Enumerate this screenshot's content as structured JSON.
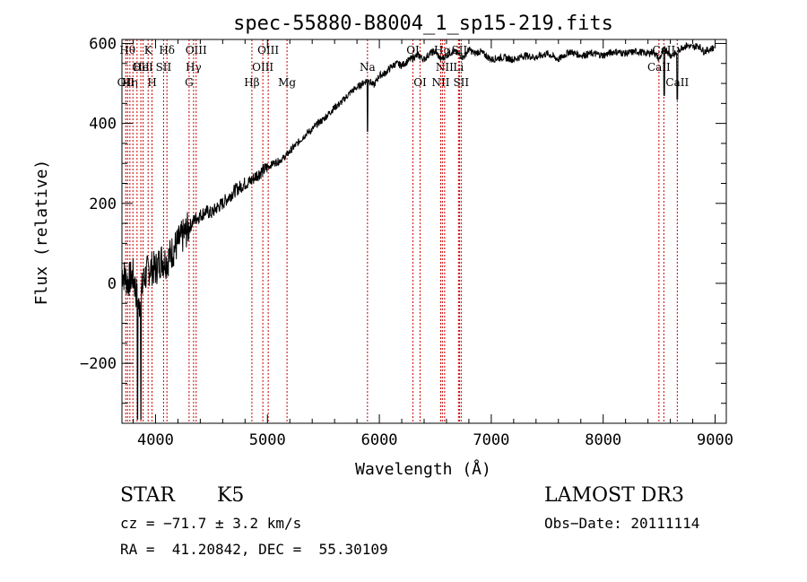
{
  "chart_data": {
    "type": "line",
    "title": "spec-55880-B8004_1_sp15-219.fits",
    "xlabel": "Wavelength (Å)",
    "ylabel": "Flux (relative)",
    "xlim": [
      3700,
      9100
    ],
    "ylim": [
      -350,
      610
    ],
    "xticks": [
      4000,
      5000,
      6000,
      7000,
      8000,
      9000
    ],
    "yticks": [
      -200,
      0,
      200,
      400,
      600
    ],
    "xtick_labels": [
      "4000",
      "5000",
      "6000",
      "7000",
      "8000",
      "9000"
    ],
    "ytick_labels": [
      "−200",
      "0",
      "200",
      "400",
      "600"
    ],
    "series": [
      {
        "name": "spectrum",
        "x": [
          3700,
          3750,
          3800,
          3850,
          3900,
          3950,
          4000,
          4050,
          4100,
          4150,
          4200,
          4250,
          4300,
          4350,
          4400,
          4450,
          4500,
          4550,
          4600,
          4650,
          4700,
          4750,
          4800,
          4850,
          4900,
          4950,
          5000,
          5050,
          5100,
          5150,
          5200,
          5250,
          5300,
          5350,
          5400,
          5450,
          5500,
          5550,
          5600,
          5650,
          5700,
          5750,
          5800,
          5850,
          5900,
          5950,
          6000,
          6050,
          6100,
          6150,
          6200,
          6250,
          6300,
          6350,
          6400,
          6450,
          6500,
          6550,
          6600,
          6650,
          6700,
          6750,
          6800,
          6850,
          6900,
          6950,
          7000,
          7100,
          7200,
          7300,
          7400,
          7500,
          7600,
          7700,
          7800,
          7900,
          8000,
          8100,
          8200,
          8300,
          8400,
          8450,
          8500,
          8550,
          8600,
          8650,
          8700,
          8750,
          8800,
          8850,
          8900,
          8950,
          8990
        ],
        "y": [
          30,
          5,
          20,
          -60,
          15,
          40,
          35,
          60,
          55,
          80,
          100,
          120,
          140,
          160,
          170,
          180,
          175,
          190,
          200,
          215,
          230,
          240,
          250,
          255,
          270,
          280,
          290,
          300,
          305,
          315,
          330,
          345,
          360,
          375,
          385,
          400,
          410,
          425,
          440,
          450,
          465,
          480,
          490,
          500,
          510,
          495,
          520,
          525,
          540,
          550,
          545,
          555,
          565,
          570,
          560,
          575,
          580,
          560,
          570,
          580,
          575,
          565,
          585,
          575,
          580,
          570,
          560,
          565,
          560,
          570,
          565,
          575,
          560,
          580,
          570,
          575,
          570,
          580,
          575,
          580,
          575,
          580,
          560,
          590,
          570,
          575,
          590,
          595,
          590,
          595,
          580,
          585,
          590
        ]
      }
    ],
    "lines": [
      {
        "x": 3734,
        "label": "OII",
        "row": 2
      },
      {
        "x": 3750,
        "label": "Hθ",
        "row": 0
      },
      {
        "x": 3771,
        "label": "Hη",
        "row": 2
      },
      {
        "x": 3798,
        "label": "",
        "row": 0
      },
      {
        "x": 3835,
        "label": "",
        "row": 0
      },
      {
        "x": 3869,
        "label": "OII",
        "row": 1
      },
      {
        "x": 3889,
        "label": "HeI",
        "row": 1
      },
      {
        "x": 3934,
        "label": "K",
        "row": 0
      },
      {
        "x": 3969,
        "label": "H",
        "row": 2
      },
      {
        "x": 4072,
        "label": "SII",
        "row": 1
      },
      {
        "x": 4102,
        "label": "Hδ",
        "row": 0
      },
      {
        "x": 4300,
        "label": "G",
        "row": 2
      },
      {
        "x": 4340,
        "label": "Hγ",
        "row": 1
      },
      {
        "x": 4363,
        "label": "OIII",
        "row": 0
      },
      {
        "x": 4861,
        "label": "Hβ",
        "row": 2
      },
      {
        "x": 4959,
        "label": "OIII",
        "row": 1
      },
      {
        "x": 5007,
        "label": "OIII",
        "row": 0
      },
      {
        "x": 5175,
        "label": "Mg",
        "row": 2
      },
      {
        "x": 5894,
        "label": "Na",
        "row": 1
      },
      {
        "x": 6300,
        "label": "OI",
        "row": 0
      },
      {
        "x": 6364,
        "label": "OI",
        "row": 2
      },
      {
        "x": 6548,
        "label": "NII",
        "row": 2
      },
      {
        "x": 6563,
        "label": "Hα",
        "row": 0
      },
      {
        "x": 6583,
        "label": "NII",
        "row": 1
      },
      {
        "x": 6707,
        "label": "Li",
        "row": 1
      },
      {
        "x": 6716,
        "label": "SII",
        "row": 0
      },
      {
        "x": 6731,
        "label": "SII",
        "row": 2
      },
      {
        "x": 8498,
        "label": "CaII",
        "row": 1
      },
      {
        "x": 8542,
        "label": "CaII",
        "row": 0
      },
      {
        "x": 8662,
        "label": "CaII",
        "row": 2
      }
    ]
  },
  "info": {
    "object_class": "STAR",
    "subclass": "K5",
    "survey": "LAMOST DR3",
    "redshift": "cz = −71.7 ± 3.2 km/s",
    "obs_date": "Obs−Date: 20111114",
    "coords": "RA =  41.20842, DEC =  55.30109"
  }
}
